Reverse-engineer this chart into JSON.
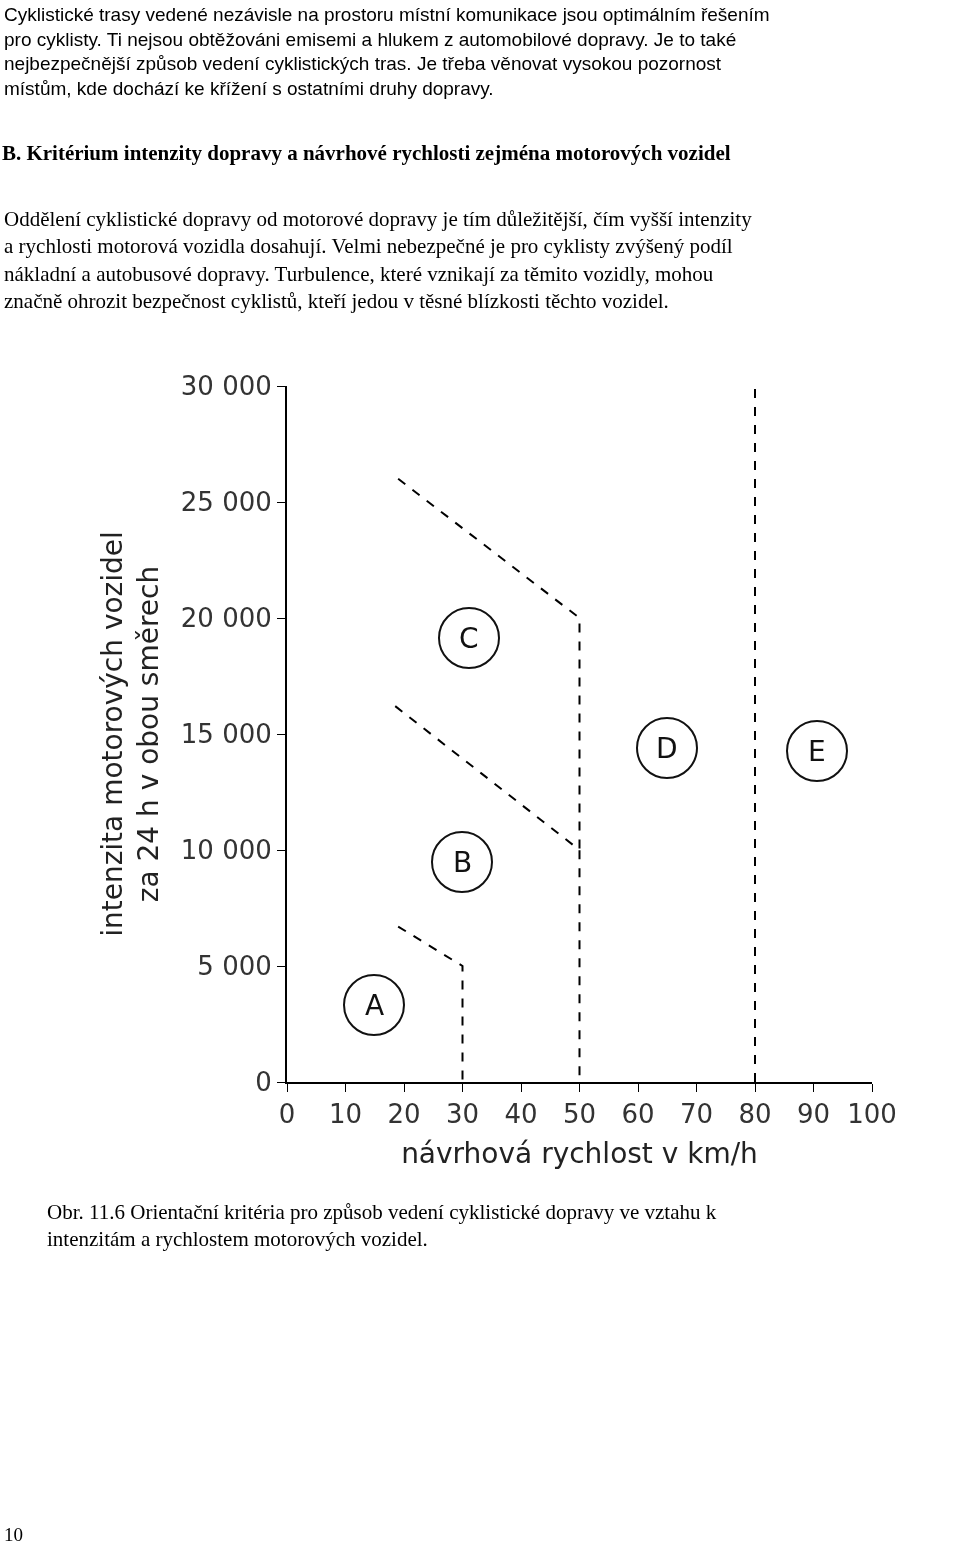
{
  "chart_data": {
    "type": "line",
    "title": "B. Kritérium intenzity dopravy a návrhové rychlosti zejména motorových vozidel",
    "xlabel": "návrhová rychlost v km/h",
    "ylabel": "intenzita motorových vozidel za 24 h v obou směrech",
    "line_style": "dashed",
    "marker": "none",
    "xlim": [
      0,
      100
    ],
    "ylim": [
      0,
      30000
    ],
    "xticks": [
      0,
      10,
      20,
      30,
      40,
      50,
      60,
      70,
      80,
      90,
      100
    ],
    "yticks": [
      0,
      {
        "value": 5000,
        "label": "5 000"
      },
      {
        "value": 10000,
        "label": "10 000"
      },
      {
        "value": 15000,
        "label": "15 000"
      },
      {
        "value": 20000,
        "label": "20 000"
      },
      {
        "value": 25000,
        "label": "25 000"
      },
      {
        "value": 30000,
        "label": "30 000"
      }
    ],
    "series": [
      {
        "color": "#000000",
        "x": [
          19,
          30,
          30
        ],
        "values": [
          6700,
          5000,
          0
        ]
      },
      {
        "color": "#000000",
        "x": [
          18.5,
          50,
          50
        ],
        "values": [
          16200,
          10000,
          0
        ]
      },
      {
        "color": "#000000",
        "x": [
          19,
          50,
          50
        ],
        "values": [
          26000,
          20000,
          10000
        ]
      }
    ],
    "ref_lines": [
      {
        "axis": "x",
        "value": 80,
        "color": "#000000",
        "line_style": "dashed"
      }
    ],
    "annotations": [
      "Cyklistické trasy vedené nezávisle na prostoru místní komunikace jsou optimálním řešením pro cyklisty. Ti nejsou obtěžováni emisemi a hlukem z automobilové dopravy. Je to také nejbezpečnější způsob vedení cyklistických tras. Je třeba věnovat vysokou pozornost místům, kde dochází ke křížení s ostatními druhy dopravy.",
      "Oddělení cyklistické dopravy od motorové dopravy je tím důležitější, čím vyšší intenzity a rychlosti motorová vozidla dosahují. Velmi nebezpečné je pro cyklisty zvýšený podíl nákladní a autobusové dopravy. Turbulence, které vznikají za těmito vozidly, mohou značně ohrozit bezpečnost cyklistů, kteří jedou v těsné blízkosti těchto vozidel.",
      "Obr. 11.6 Orientační kritéria pro způsob vedení cyklistické dopravy ve vztahu k intenzitám a rychlostem motorových vozidel.",
      "10",
      "A",
      "B",
      "C",
      "D",
      "E"
    ]
  }
}
